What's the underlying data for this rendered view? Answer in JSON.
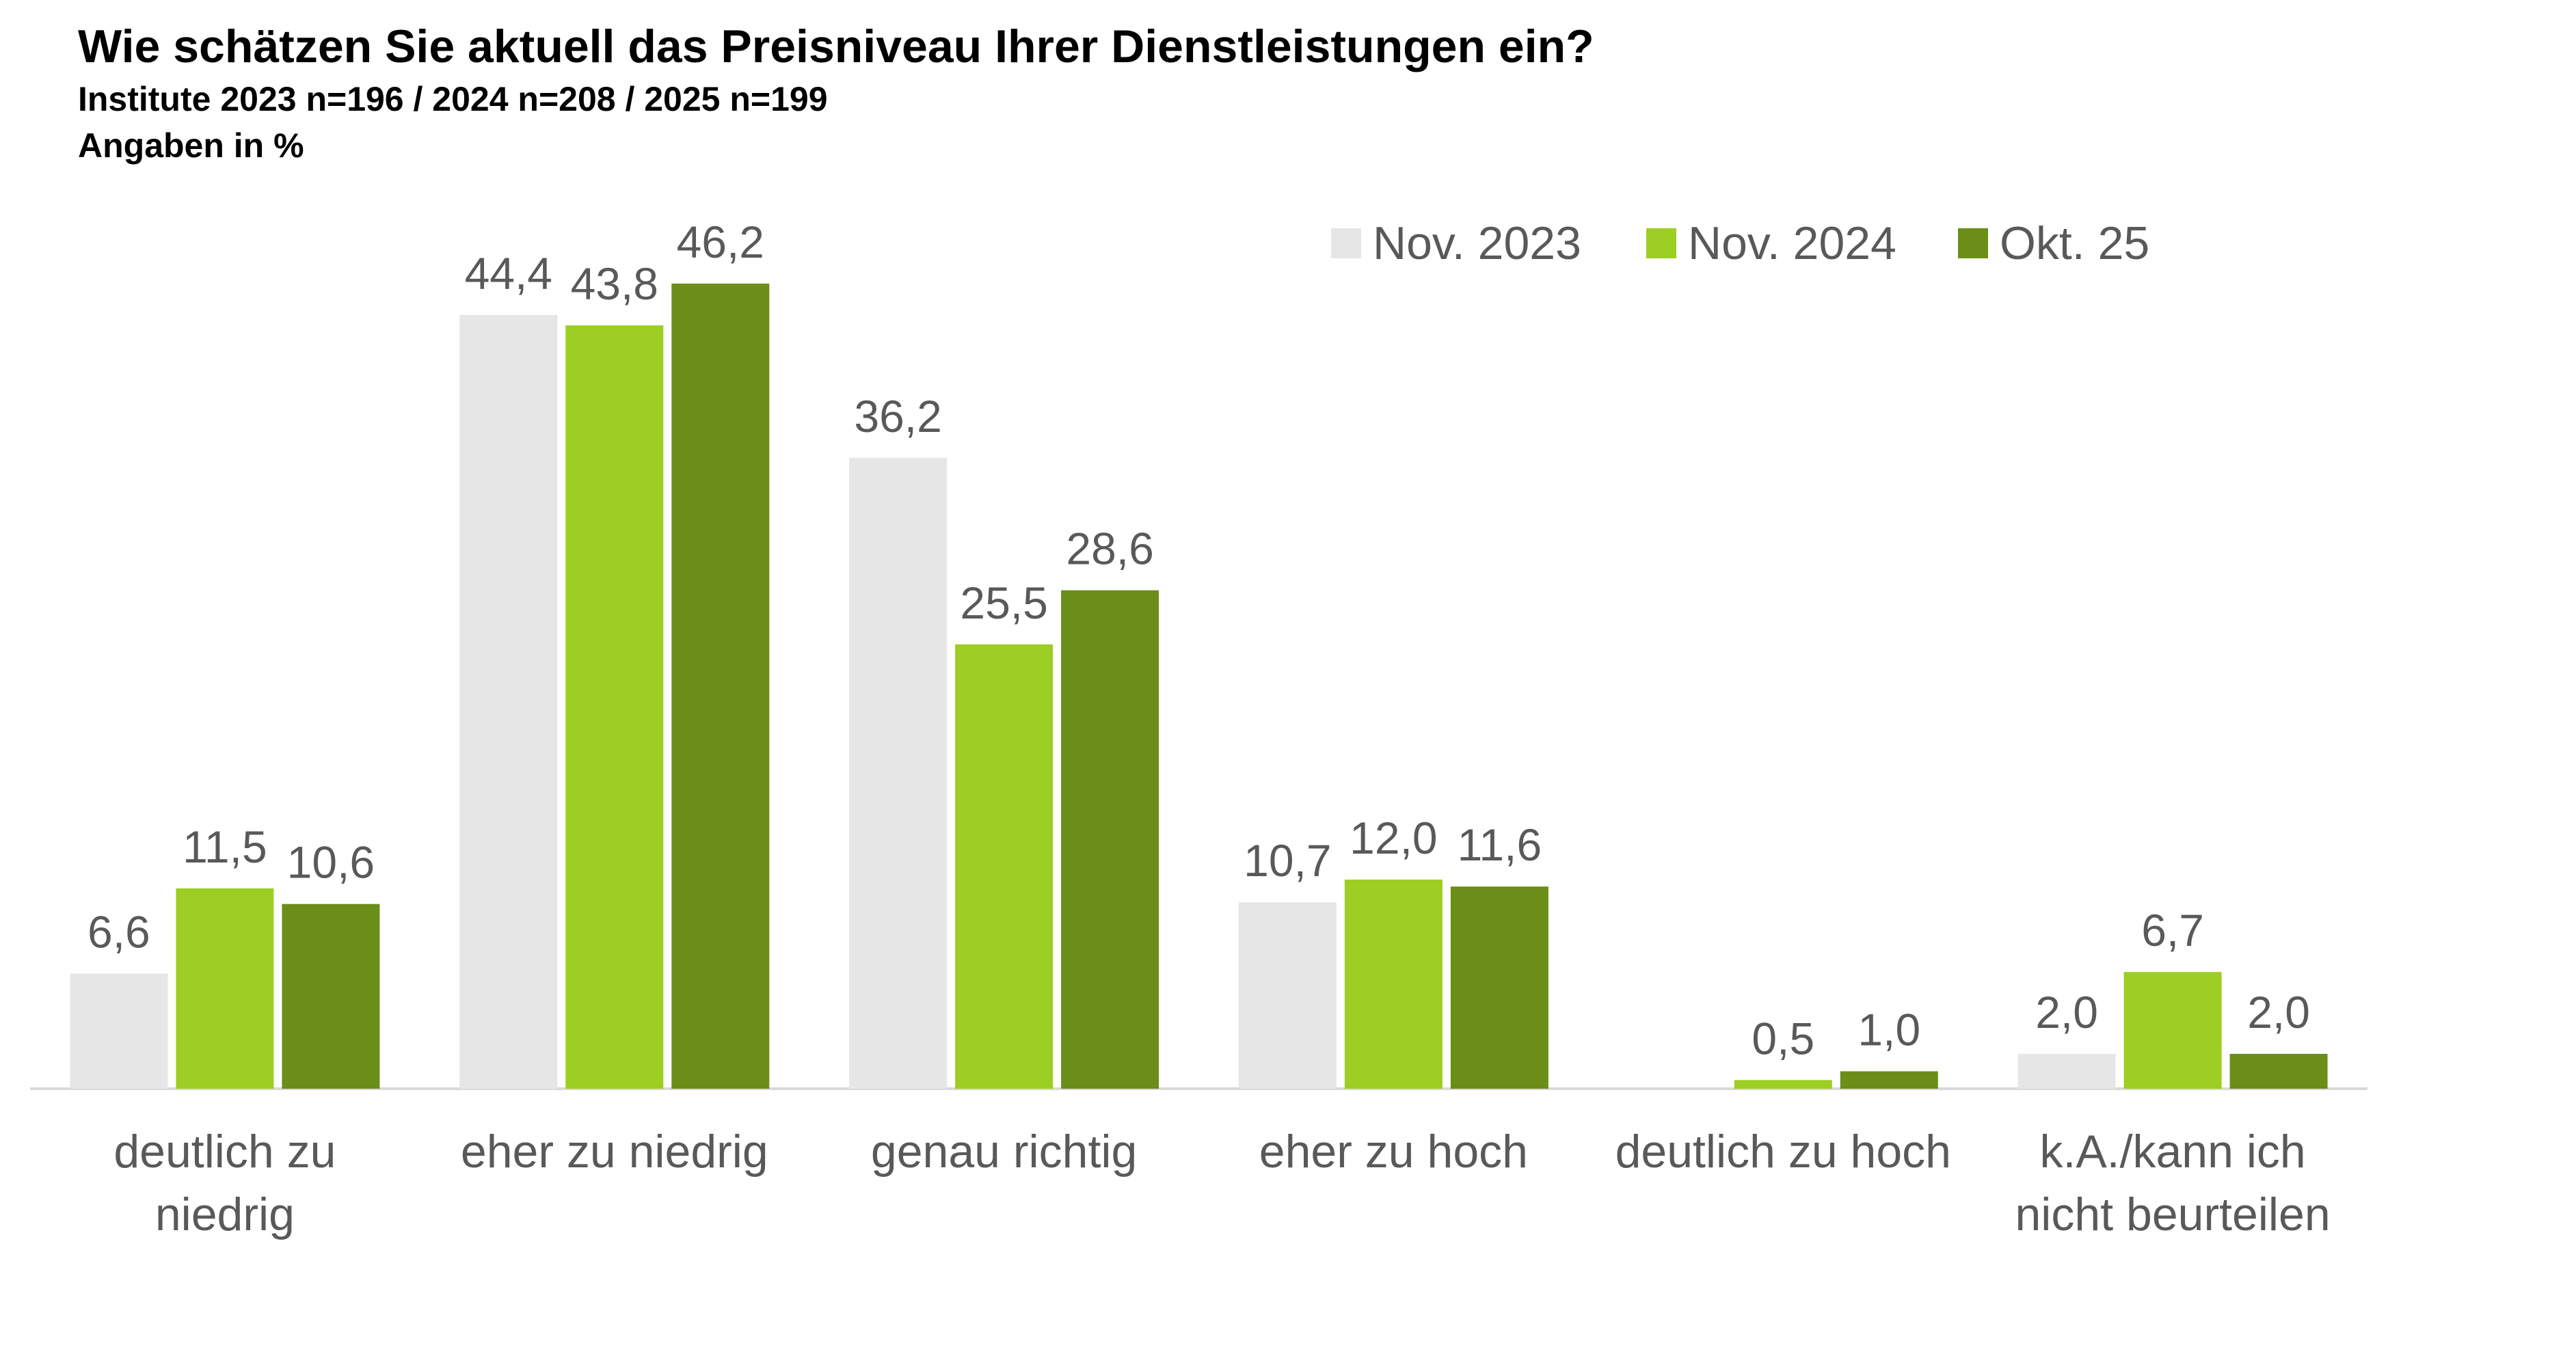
{
  "chart_data": {
    "type": "bar",
    "title": "Wie schätzen Sie aktuell das Preisniveau Ihrer Dienstleistungen ein?",
    "subtitle": "Institute 2023 n=196 / 2024 n=208 / 2025 n=199",
    "note": "Angaben in %",
    "categories": [
      "deutlich zu niedrig",
      "eher zu niedrig",
      "genau richtig",
      "eher zu hoch",
      "deutlich zu hoch",
      "k.A./kann ich nicht beurteilen"
    ],
    "series": [
      {
        "name": "Nov. 2023",
        "color": "#E7E6E6",
        "values": [
          6.6,
          44.4,
          36.2,
          10.7,
          null,
          2.0
        ]
      },
      {
        "name": "Nov. 2024",
        "color": "#9DCE23",
        "values": [
          11.5,
          43.8,
          25.5,
          12.0,
          0.5,
          6.7
        ]
      },
      {
        "name": "Okt. 25",
        "color": "#6B8E18",
        "values": [
          10.6,
          46.2,
          28.6,
          11.6,
          1.0,
          2.0
        ]
      }
    ],
    "ylim": [
      0,
      50
    ],
    "grid": false,
    "legend": "top-right"
  }
}
